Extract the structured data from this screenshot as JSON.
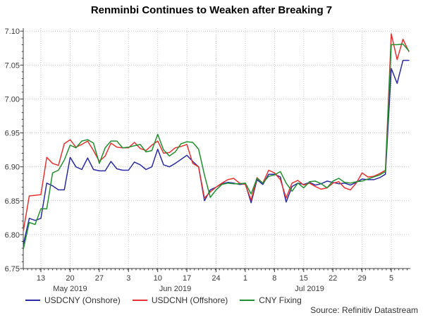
{
  "title": "Renminbi Continues to Weaken after Breaking 7",
  "source": "Source: Refinitiv Datastream",
  "colors": {
    "axis": "#3f3f3f",
    "grid": "#c9c9c9",
    "tick_text": "#3a3a3a",
    "usdcny_blue": "#2b2ba3",
    "usdcnh_red": "#e63231",
    "fixing_green": "#21902f"
  },
  "chart_data": {
    "type": "line",
    "title": "Renminbi Continues to Weaken after Breaking 7",
    "xlabel": "",
    "ylabel": "",
    "ylim": [
      6.75,
      7.1
    ],
    "grid": "dotted",
    "legend_position": "bottom",
    "y_tick_labels": [
      "6.75",
      "6.80",
      "6.85",
      "6.90",
      "6.95",
      "7.00",
      "7.05",
      "7.10"
    ],
    "x_ticks": [
      {
        "label": "13",
        "date": "2019-05-13"
      },
      {
        "label": "20",
        "date": "2019-05-20"
      },
      {
        "label": "27",
        "date": "2019-05-27"
      },
      {
        "label": "3",
        "date": "2019-06-03"
      },
      {
        "label": "10",
        "date": "2019-06-10"
      },
      {
        "label": "17",
        "date": "2019-06-17"
      },
      {
        "label": "24",
        "date": "2019-06-24"
      },
      {
        "label": "1",
        "date": "2019-07-01"
      },
      {
        "label": "8",
        "date": "2019-07-08"
      },
      {
        "label": "15",
        "date": "2019-07-15"
      },
      {
        "label": "22",
        "date": "2019-07-22"
      },
      {
        "label": "29",
        "date": "2019-07-29"
      },
      {
        "label": "5",
        "date": "2019-08-05"
      }
    ],
    "month_labels": [
      {
        "label": "May 2019",
        "date": "2019-05-20"
      },
      {
        "label": "Jun 2019",
        "date": "2019-06-13"
      },
      {
        "label": "Jul 2019",
        "date": "2019-07-16"
      }
    ],
    "dates": [
      "2019-05-08",
      "2019-05-09",
      "2019-05-10",
      "2019-05-13",
      "2019-05-14",
      "2019-05-15",
      "2019-05-16",
      "2019-05-17",
      "2019-05-20",
      "2019-05-21",
      "2019-05-22",
      "2019-05-23",
      "2019-05-24",
      "2019-05-27",
      "2019-05-28",
      "2019-05-29",
      "2019-05-30",
      "2019-05-31",
      "2019-06-03",
      "2019-06-04",
      "2019-06-05",
      "2019-06-06",
      "2019-06-07",
      "2019-06-10",
      "2019-06-11",
      "2019-06-12",
      "2019-06-13",
      "2019-06-14",
      "2019-06-17",
      "2019-06-18",
      "2019-06-19",
      "2019-06-20",
      "2019-06-21",
      "2019-06-24",
      "2019-06-25",
      "2019-06-26",
      "2019-06-27",
      "2019-06-28",
      "2019-07-01",
      "2019-07-02",
      "2019-07-03",
      "2019-07-04",
      "2019-07-05",
      "2019-07-08",
      "2019-07-09",
      "2019-07-10",
      "2019-07-11",
      "2019-07-12",
      "2019-07-15",
      "2019-07-16",
      "2019-07-17",
      "2019-07-18",
      "2019-07-19",
      "2019-07-22",
      "2019-07-23",
      "2019-07-24",
      "2019-07-25",
      "2019-07-26",
      "2019-07-29",
      "2019-07-30",
      "2019-07-31",
      "2019-08-01",
      "2019-08-02",
      "2019-08-05",
      "2019-08-06",
      "2019-08-07",
      "2019-08-08"
    ],
    "series": [
      {
        "name": "USDCNY (Onshore)",
        "color": "#2b2ba3",
        "values": [
          6.786,
          6.824,
          6.821,
          6.824,
          6.876,
          6.872,
          6.866,
          6.866,
          6.914,
          6.9,
          6.896,
          6.913,
          6.896,
          6.894,
          6.894,
          6.908,
          6.897,
          6.895,
          6.895,
          6.907,
          6.903,
          6.896,
          6.9,
          6.926,
          6.903,
          6.9,
          6.905,
          6.911,
          6.917,
          6.908,
          6.9,
          6.85,
          6.866,
          6.87,
          6.875,
          6.877,
          6.876,
          6.874,
          6.875,
          6.847,
          6.881,
          6.874,
          6.889,
          6.889,
          6.885,
          6.848,
          6.871,
          6.876,
          6.874,
          6.877,
          6.873,
          6.875,
          6.879,
          6.877,
          6.875,
          6.876,
          6.873,
          6.877,
          6.882,
          6.881,
          6.881,
          6.884,
          6.889,
          7.045,
          7.023,
          7.057,
          7.057
        ]
      },
      {
        "name": "USDCNH (Offshore)",
        "color": "#e63231",
        "values": [
          6.806,
          6.857,
          6.858,
          6.859,
          6.914,
          6.905,
          6.902,
          6.934,
          6.94,
          6.929,
          6.933,
          6.938,
          6.924,
          6.908,
          6.916,
          6.935,
          6.929,
          6.928,
          6.928,
          6.936,
          6.927,
          6.924,
          6.932,
          6.938,
          6.92,
          6.921,
          6.928,
          6.93,
          6.933,
          6.905,
          6.9,
          6.854,
          6.863,
          6.87,
          6.876,
          6.881,
          6.883,
          6.876,
          6.874,
          6.851,
          6.884,
          6.876,
          6.895,
          6.891,
          6.881,
          6.854,
          6.876,
          6.88,
          6.873,
          6.876,
          6.871,
          6.867,
          6.869,
          6.876,
          6.878,
          6.869,
          6.866,
          6.876,
          6.891,
          6.885,
          6.886,
          6.89,
          6.895,
          7.096,
          7.058,
          7.088,
          7.07
        ]
      },
      {
        "name": "CNY Fixing",
        "color": "#21902f",
        "values": [
          6.779,
          6.818,
          6.815,
          6.838,
          6.838,
          6.891,
          6.895,
          6.91,
          6.932,
          6.928,
          6.938,
          6.94,
          6.935,
          6.905,
          6.928,
          6.938,
          6.938,
          6.928,
          6.929,
          6.931,
          6.933,
          6.922,
          6.924,
          6.948,
          6.925,
          6.916,
          6.922,
          6.934,
          6.937,
          6.936,
          6.926,
          6.888,
          6.855,
          6.866,
          6.874,
          6.876,
          6.875,
          6.875,
          6.876,
          6.86,
          6.883,
          6.876,
          6.886,
          6.888,
          6.893,
          6.876,
          6.864,
          6.876,
          6.869,
          6.878,
          6.879,
          6.875,
          6.869,
          6.879,
          6.883,
          6.877,
          6.876,
          6.878,
          6.879,
          6.882,
          6.885,
          6.888,
          6.893,
          7.08,
          7.08,
          7.081,
          7.071
        ]
      }
    ]
  }
}
